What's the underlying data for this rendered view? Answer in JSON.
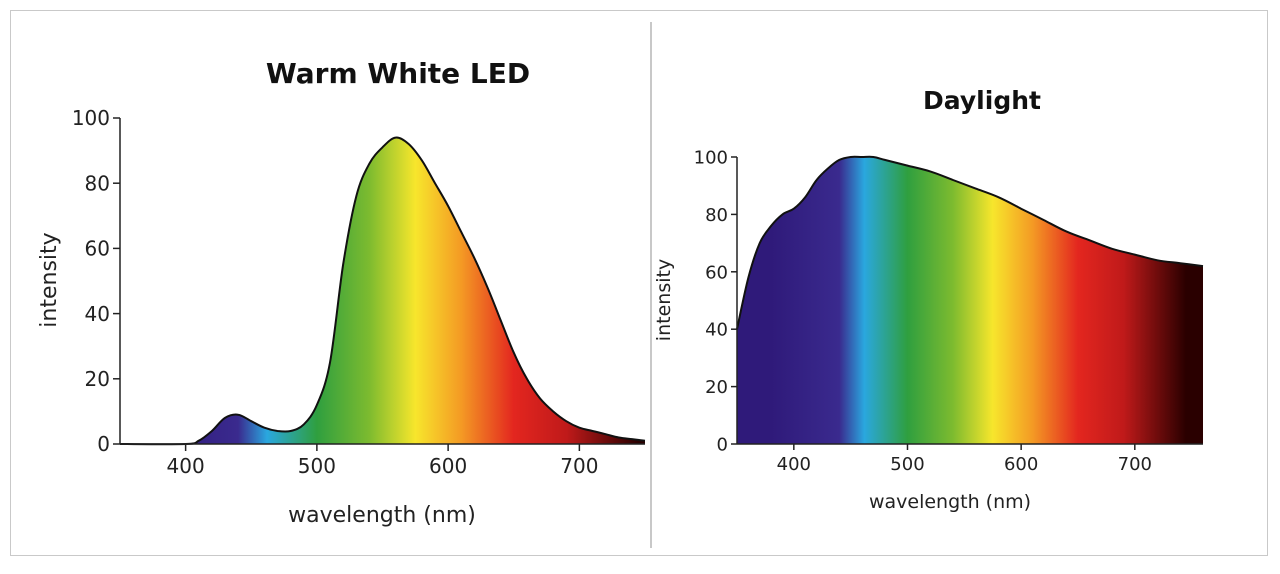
{
  "colors": {
    "spectrum": [
      "#2f1a7a",
      "#3a2a8e",
      "#2aa7df",
      "#2f9f3f",
      "#7dbb2f",
      "#f7e62c",
      "#f49a24",
      "#e3261f",
      "#c01a1a",
      "#2a0000"
    ],
    "outline": "#111111",
    "divider": "#b5b5b5",
    "frame": "#c9c9c9"
  },
  "chart_data": [
    {
      "type": "area",
      "title": "Warm White LED",
      "xlabel": "wavelength (nm)",
      "ylabel": "intensity",
      "xlim": [
        350,
        750
      ],
      "ylim": [
        0,
        100
      ],
      "x_ticks": [
        400,
        500,
        600,
        700
      ],
      "y_ticks": [
        0,
        20,
        40,
        60,
        80,
        100
      ],
      "grid": false,
      "series": [
        {
          "x": [
            350,
            400,
            410,
            420,
            430,
            440,
            450,
            460,
            470,
            480,
            490,
            500,
            510,
            520,
            530,
            540,
            550,
            560,
            570,
            580,
            590,
            600,
            610,
            620,
            630,
            640,
            650,
            660,
            670,
            680,
            690,
            700,
            710,
            720,
            730,
            740,
            750
          ],
          "y": [
            0,
            0,
            1,
            4,
            8,
            9,
            7,
            5,
            4,
            4,
            6,
            12,
            25,
            55,
            76,
            86,
            91,
            94,
            92,
            87,
            80,
            73,
            65,
            57,
            48,
            38,
            28,
            20,
            14,
            10,
            7,
            5,
            4,
            3,
            2,
            1.5,
            1
          ]
        }
      ]
    },
    {
      "type": "area",
      "title": "Daylight",
      "xlabel": "wavelength (nm)",
      "ylabel": "intensity",
      "xlim": [
        350,
        760
      ],
      "ylim": [
        0,
        100
      ],
      "x_ticks": [
        400,
        500,
        600,
        700
      ],
      "y_ticks": [
        0,
        20,
        40,
        60,
        80,
        100
      ],
      "grid": false,
      "series": [
        {
          "x": [
            350,
            360,
            370,
            380,
            390,
            400,
            410,
            420,
            430,
            440,
            450,
            460,
            470,
            480,
            500,
            520,
            540,
            560,
            580,
            600,
            620,
            640,
            660,
            680,
            700,
            720,
            740,
            760
          ],
          "y": [
            40,
            58,
            70,
            76,
            80,
            82,
            86,
            92,
            96,
            99,
            100,
            100,
            100,
            99,
            97,
            95,
            92,
            89,
            86,
            82,
            78,
            74,
            71,
            68,
            66,
            64,
            63,
            62
          ]
        }
      ]
    }
  ]
}
